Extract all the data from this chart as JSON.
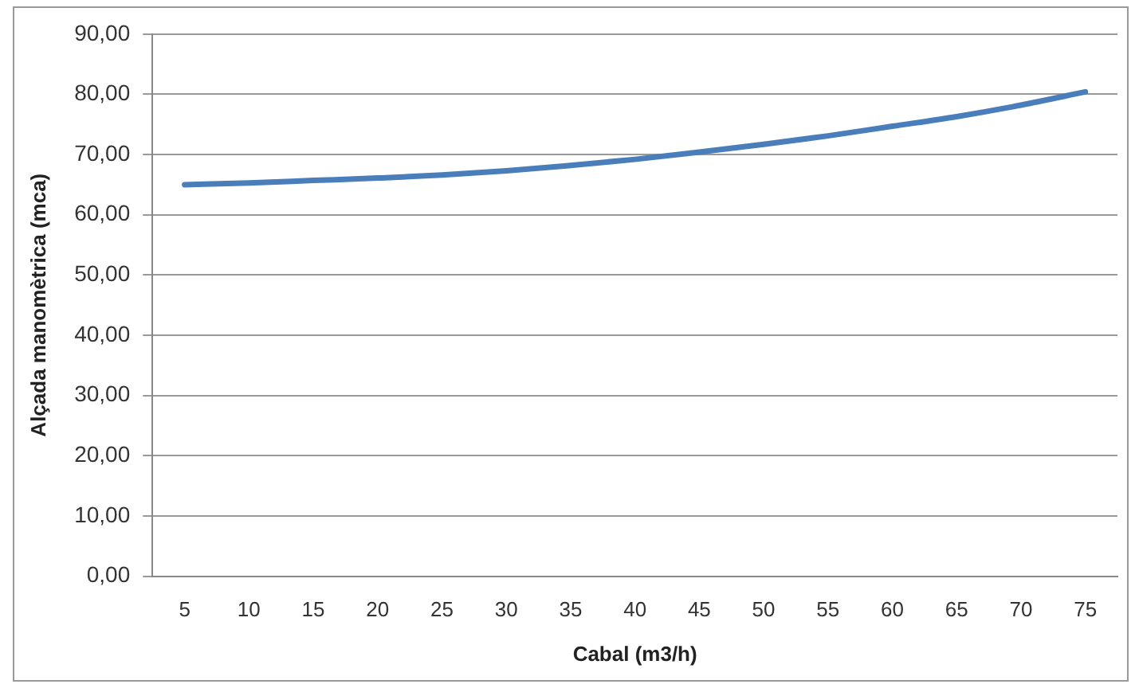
{
  "chart_data": {
    "type": "line",
    "xlabel": "Cabal (m3/h)",
    "ylabel": "Alçada manomètrica (mca)",
    "categories": [
      "5",
      "10",
      "15",
      "20",
      "25",
      "30",
      "35",
      "40",
      "45",
      "50",
      "55",
      "60",
      "65",
      "70",
      "75"
    ],
    "series": [
      {
        "color": "#4a7ebb",
        "values": [
          65.0,
          65.3,
          65.7,
          66.1,
          66.6,
          67.3,
          68.2,
          69.2,
          70.4,
          71.7,
          73.1,
          74.7,
          76.3,
          78.2,
          80.4
        ]
      }
    ],
    "ylim": [
      0,
      90
    ],
    "yticks": [
      {
        "value": 0,
        "label": "0,00"
      },
      {
        "value": 10,
        "label": "10,00"
      },
      {
        "value": 20,
        "label": "20,00"
      },
      {
        "value": 30,
        "label": "30,00"
      },
      {
        "value": 40,
        "label": "40,00"
      },
      {
        "value": 50,
        "label": "50,00"
      },
      {
        "value": 60,
        "label": "60,00"
      },
      {
        "value": 70,
        "label": "70,00"
      },
      {
        "value": 80,
        "label": "80,00"
      },
      {
        "value": 90,
        "label": "90,00"
      }
    ],
    "grid": "y",
    "legend": false,
    "marker": "none",
    "line_style": "solid"
  }
}
